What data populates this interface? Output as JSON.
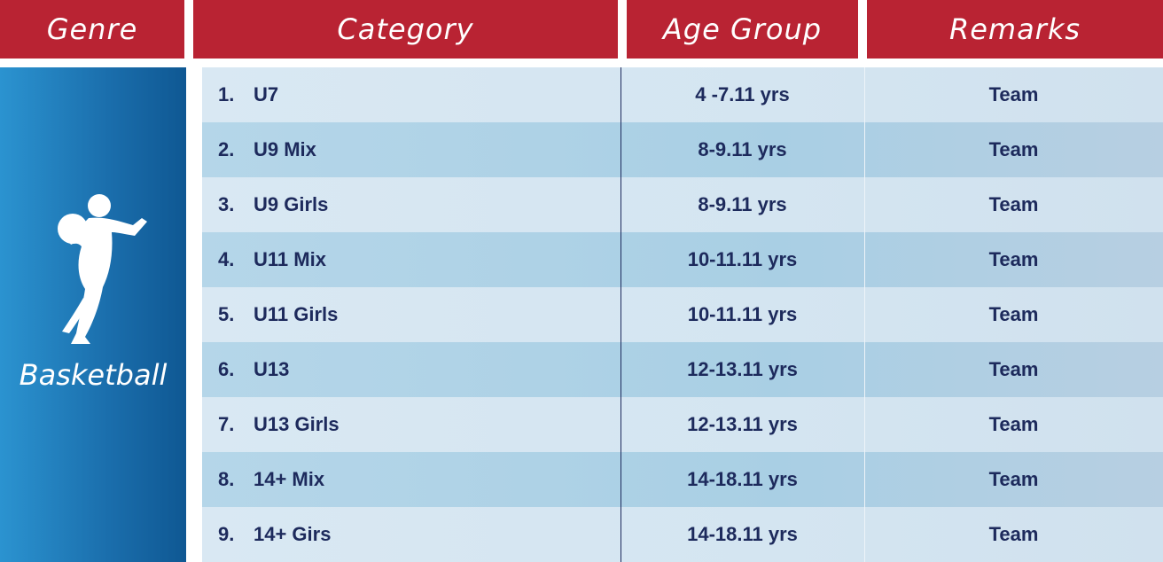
{
  "header": [
    "Genre",
    "Category",
    "Age Group",
    "Remarks"
  ],
  "genre": "Basketball",
  "rows": [
    [
      "1.",
      "U7",
      "4 -7.11 yrs",
      "Team"
    ],
    [
      "2.",
      "U9 Mix",
      "8-9.11 yrs",
      "Team"
    ],
    [
      "3.",
      "U9 Girls",
      "8-9.11 yrs",
      "Team"
    ],
    [
      "4.",
      "U11 Mix",
      "10-11.11 yrs",
      "Team"
    ],
    [
      "5.",
      "U11 Girls",
      "10-11.11 yrs",
      "Team"
    ],
    [
      "6.",
      "U13",
      "12-13.11 yrs",
      "Team"
    ],
    [
      "7.",
      "U13 Girls",
      "12-13.11 yrs",
      "Team"
    ],
    [
      "8.",
      "14+ Mix",
      "14-18.11 yrs",
      "Team"
    ],
    [
      "9.",
      "14+ Girs",
      "14-18.11 yrs",
      "Team"
    ]
  ]
}
